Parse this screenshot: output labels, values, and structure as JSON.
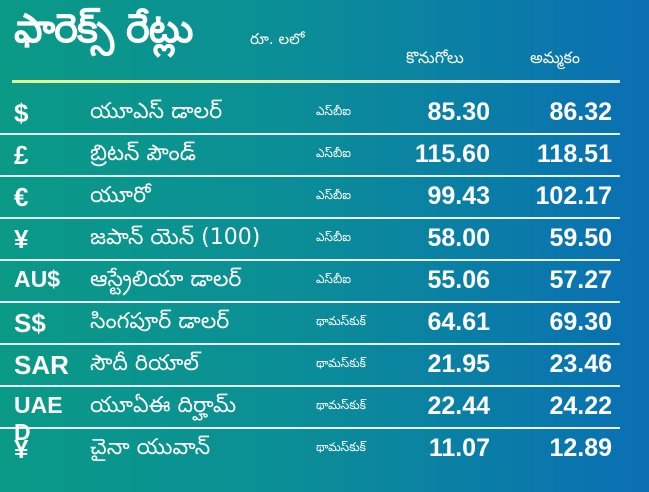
{
  "header": {
    "title": "ఫారెక్స్ రేట్లు",
    "unit": "రూ. లలో",
    "col_buy": "కొనుగోలు",
    "col_sell": "అమ్మకం"
  },
  "rows": [
    {
      "symbol": "$",
      "name": "యూఎస్ డాలర్",
      "source": "ఎస్‌బీఐ",
      "buy": "85.30",
      "sell": "86.32"
    },
    {
      "symbol": "£",
      "name": "బ్రిటన్ పౌండ్",
      "source": "ఎస్‌బీఐ",
      "buy": "115.60",
      "sell": "118.51"
    },
    {
      "symbol": "€",
      "name": "యూరో",
      "source": "ఎస్‌బీఐ",
      "buy": "99.43",
      "sell": "102.17"
    },
    {
      "symbol": "¥",
      "name": "జపాన్ యెన్ (100)",
      "source": "ఎస్‌బీఐ",
      "buy": "58.00",
      "sell": "59.50"
    },
    {
      "symbol": "AU$",
      "name": "ఆస్ట్రేలియా డాలర్",
      "source": "ఎస్‌బీఐ",
      "buy": "55.06",
      "sell": "57.27"
    },
    {
      "symbol": "S$",
      "name": "సింగపూర్ డాలర్",
      "source": "థామస్‌కుక్",
      "buy": "64.61",
      "sell": "69.30"
    },
    {
      "symbol": "SAR",
      "name": "సౌదీ రియాల్",
      "source": "థామస్‌కుక్",
      "buy": "21.95",
      "sell": "23.46"
    },
    {
      "symbol": "UAE D",
      "name": "యూఏఈ దిర్హామ్",
      "source": "థామస్‌కుక్",
      "buy": "22.44",
      "sell": "24.22"
    },
    {
      "symbol": "¥",
      "name": "చైనా యువాన్",
      "source": "థామస్‌కుక్",
      "buy": "11.07",
      "sell": "12.89"
    }
  ],
  "colors": {
    "background_left": "#0a9a86",
    "background_right": "#0a6fb4",
    "text": "#ffffff"
  }
}
